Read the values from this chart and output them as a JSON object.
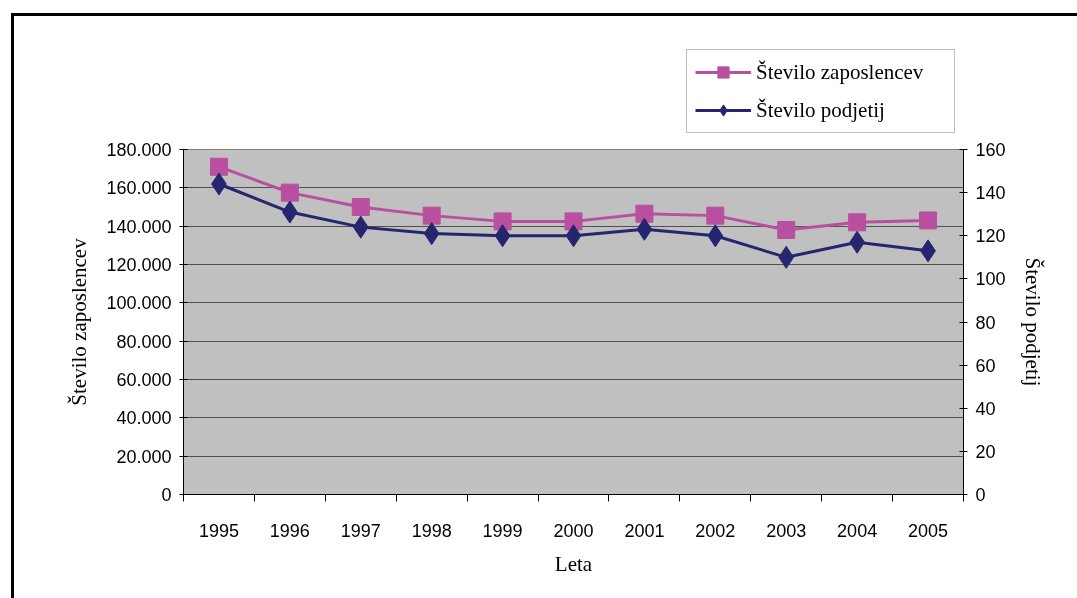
{
  "chart_data": {
    "type": "line",
    "xlabel": "Leta",
    "ylabel": "Število zaposlencev",
    "y2label": "Število podjetij",
    "categories": [
      "1995",
      "1996",
      "1997",
      "1998",
      "1999",
      "2000",
      "2001",
      "2002",
      "2003",
      "2004",
      "2005"
    ],
    "series": [
      {
        "name": "Število zaposlencev",
        "color": "#b9509f",
        "marker": "square",
        "values": [
          171000,
          157500,
          150000,
          145500,
          142500,
          142500,
          146500,
          145500,
          138000,
          142000,
          143000
        ]
      },
      {
        "name": "Število podjetij",
        "color": "#25266f",
        "marker": "diamond",
        "axis": "y2",
        "values": [
          144,
          131,
          124,
          121,
          120,
          120,
          123,
          120,
          110,
          117,
          113
        ]
      }
    ],
    "ylim": [
      0,
      180000
    ],
    "yticks": [
      0,
      {
        "value": 20000,
        "label": "20.000"
      },
      {
        "value": 40000,
        "label": "40.000"
      },
      {
        "value": 60000,
        "label": "60.000"
      },
      {
        "value": 80000,
        "label": "80.000"
      },
      {
        "value": 100000,
        "label": "100.000"
      },
      {
        "value": 120000,
        "label": "120.000"
      },
      {
        "value": 140000,
        "label": "140.000"
      },
      {
        "value": 160000,
        "label": "160.000"
      },
      {
        "value": 180000,
        "label": "180.000"
      }
    ],
    "y2lim": [
      0,
      160
    ],
    "y2ticks": [
      0,
      20,
      40,
      60,
      80,
      100,
      120,
      140,
      160
    ],
    "grid": "y",
    "legend": "top right",
    "line_style": "solid"
  }
}
